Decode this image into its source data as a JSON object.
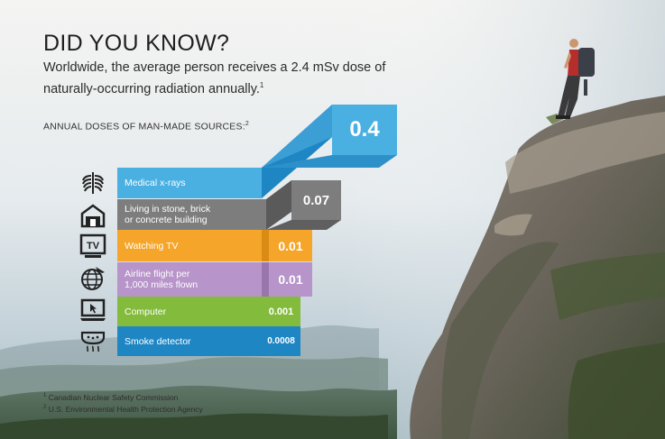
{
  "heading": {
    "title": "DID YOU KNOW?",
    "intro_text": "Worldwide, the average person receives a 2.4 mSv dose of naturally-occurring radiation annually.",
    "intro_ref": "1"
  },
  "subheading": {
    "text": "ANNUAL DOSES OF MAN-MADE SOURCES:",
    "ref": "2"
  },
  "colors": {
    "medical": "#4ab0e2",
    "building": "#7d7d7d",
    "tv": "#f5a52a",
    "airline": "#b794c9",
    "computer": "#83bb3c",
    "smoke": "#1f86c4"
  },
  "sources": [
    {
      "icon": "ribcage-xray-icon",
      "label": "Medical x-rays",
      "value": "0.4",
      "color": "#4ab0e2"
    },
    {
      "icon": "house-icon",
      "label": "Living in stone, brick\nor concrete building",
      "value": "0.07",
      "color": "#7d7d7d"
    },
    {
      "icon": "tv-icon",
      "label": "Watching TV",
      "value": "0.01",
      "color": "#f5a52a"
    },
    {
      "icon": "airplane-globe-icon",
      "label": "Airline flight per\n1,000 miles flown",
      "value": "0.01",
      "color": "#b794c9"
    },
    {
      "icon": "computer-icon",
      "label": "Computer",
      "value": "0.001",
      "color": "#83bb3c"
    },
    {
      "icon": "smoke-detector-icon",
      "label": "Smoke detector",
      "value": "0.0008",
      "color": "#1f86c4"
    }
  ],
  "footnotes": [
    {
      "ref": "1",
      "text": "Canadian Nuclear Safety Commission"
    },
    {
      "ref": "2",
      "text": "U.S. Environmental Health Protection Agency"
    }
  ]
}
